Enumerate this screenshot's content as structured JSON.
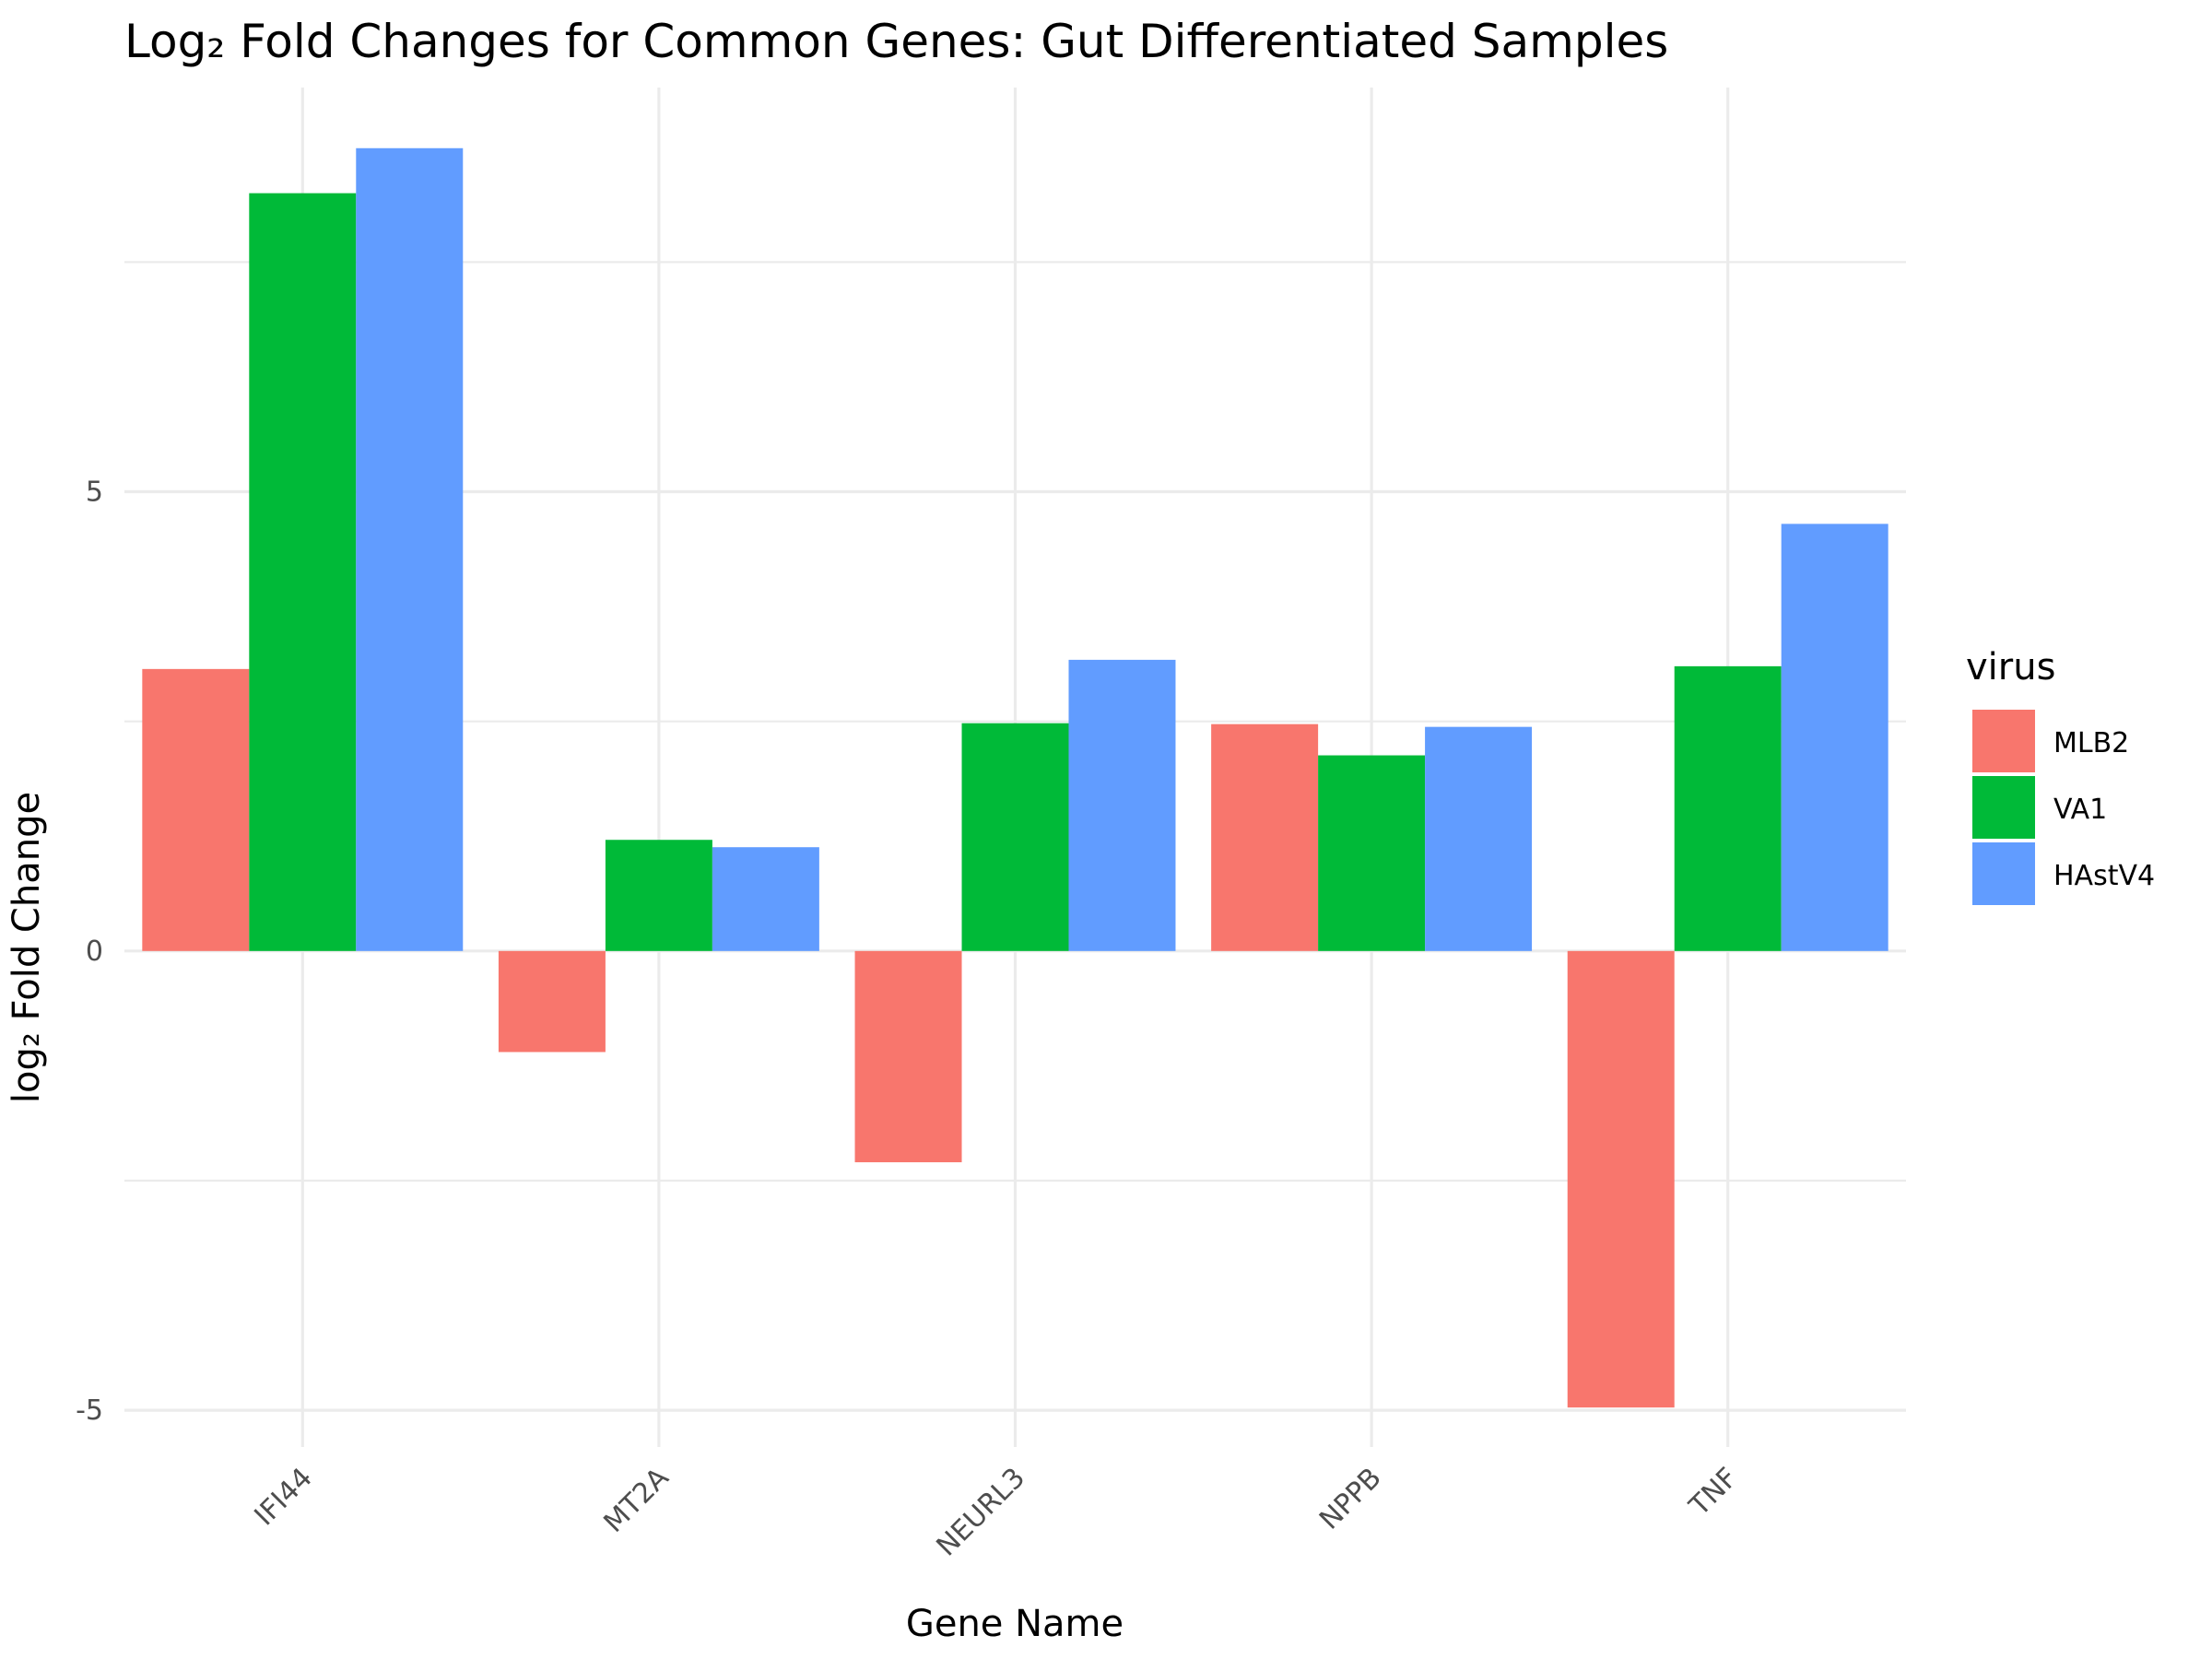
{
  "chart_data": {
    "type": "bar",
    "title": "Log₂ Fold Changes for Common Genes: Gut Differentiated Samples",
    "xlabel": "Gene Name",
    "ylabel": "log₂ Fold Change",
    "categories": [
      "IFI44",
      "MT2A",
      "NEURL3",
      "NPPB",
      "TNF"
    ],
    "series": [
      {
        "name": "MLB2",
        "color": "#F8766D",
        "values": [
          3.07,
          -1.1,
          -2.3,
          2.47,
          -4.97
        ]
      },
      {
        "name": "VA1",
        "color": "#00BA38",
        "values": [
          8.25,
          1.21,
          2.48,
          2.13,
          3.1
        ]
      },
      {
        "name": "HAstV4",
        "color": "#619CFF",
        "values": [
          8.74,
          1.13,
          3.17,
          2.44,
          4.65
        ]
      }
    ],
    "yticks": [
      -5,
      0,
      5
    ],
    "ytick_labels": [
      "-5",
      "0",
      "5"
    ],
    "ylim": [
      -5.4,
      9.4
    ],
    "grid": true,
    "legend": {
      "title": "virus",
      "position": "right"
    }
  }
}
